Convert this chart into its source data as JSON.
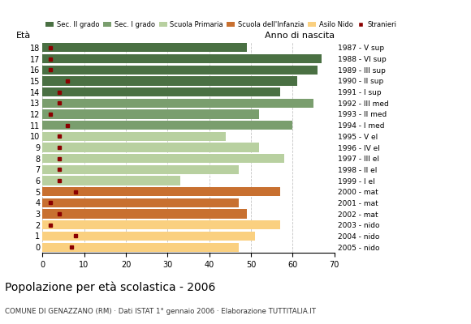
{
  "ages": [
    18,
    17,
    16,
    15,
    14,
    13,
    12,
    11,
    10,
    9,
    8,
    7,
    6,
    5,
    4,
    3,
    2,
    1,
    0
  ],
  "bar_values": [
    49,
    67,
    66,
    61,
    57,
    65,
    52,
    60,
    44,
    52,
    58,
    47,
    33,
    57,
    47,
    49,
    57,
    51,
    47
  ],
  "stranieri": [
    2,
    2,
    2,
    6,
    4,
    4,
    2,
    6,
    4,
    4,
    4,
    4,
    4,
    8,
    2,
    4,
    2,
    8,
    7
  ],
  "right_labels": [
    "1987 - V sup",
    "1988 - VI sup",
    "1989 - III sup",
    "1990 - II sup",
    "1991 - I sup",
    "1992 - III med",
    "1993 - II med",
    "1994 - I med",
    "1995 - V el",
    "1996 - IV el",
    "1997 - III el",
    "1998 - II el",
    "1999 - I el",
    "2000 - mat",
    "2001 - mat",
    "2002 - mat",
    "2003 - nido",
    "2004 - nido",
    "2005 - nido"
  ],
  "category_colors": {
    "Sec. II grado": "#4a7043",
    "Sec. I grado": "#7a9e6e",
    "Scuola Primaria": "#b8d0a0",
    "Scuola dell'Infanzia": "#c87030",
    "Asilo Nido": "#fad080"
  },
  "age_category": {
    "18": "Sec. II grado",
    "17": "Sec. II grado",
    "16": "Sec. II grado",
    "15": "Sec. II grado",
    "14": "Sec. II grado",
    "13": "Sec. I grado",
    "12": "Sec. I grado",
    "11": "Sec. I grado",
    "10": "Scuola Primaria",
    "9": "Scuola Primaria",
    "8": "Scuola Primaria",
    "7": "Scuola Primaria",
    "6": "Scuola Primaria",
    "5": "Scuola dell'Infanzia",
    "4": "Scuola dell'Infanzia",
    "3": "Scuola dell'Infanzia",
    "2": "Asilo Nido",
    "1": "Asilo Nido",
    "0": "Asilo Nido"
  },
  "stranieri_color": "#8b0000",
  "title": "Popolazione per età scolastica - 2006",
  "subtitle": "COMUNE DI GENAZZANO (RM) · Dati ISTAT 1° gennaio 2006 · Elaborazione TUTTITALIA.IT",
  "ylabel_left": "Età",
  "ylabel_right": "Anno di nascita",
  "xlim": [
    0,
    70
  ],
  "xticks": [
    0,
    10,
    20,
    30,
    40,
    50,
    60,
    70
  ],
  "figsize": [
    5.8,
    4.0
  ],
  "dpi": 100,
  "bg_color": "#f5f5f0"
}
